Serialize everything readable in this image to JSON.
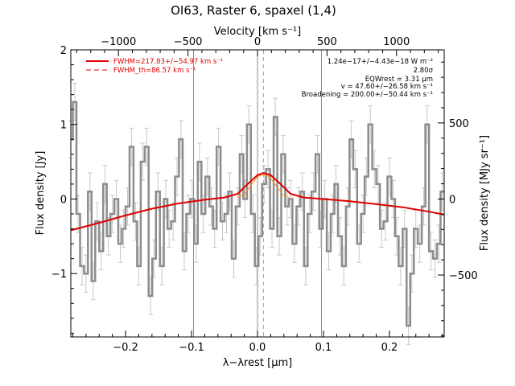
{
  "chart_data": {
    "type": "line",
    "title": "OI63, Raster 6, spaxel (1,4)",
    "xlabel": "λ−λrest [μm]",
    "ylabel_left": "Flux density [Jy]",
    "ylabel_right": "Flux density [MJy sr⁻¹]",
    "xlabel_top": "Velocity [km s⁻¹]",
    "xlim": [
      -0.283,
      0.283
    ],
    "ylim": [
      -1.85,
      2.0
    ],
    "x_ticks": [
      -0.2,
      -0.1,
      0.0,
      0.1,
      0.2
    ],
    "x_tick_labels": [
      "−0.2",
      "−0.1",
      "0.0",
      "0.1",
      "0.2"
    ],
    "y_ticks": [
      -1,
      0,
      1,
      2
    ],
    "y_tick_labels": [
      "−1",
      "0",
      "1",
      "2"
    ],
    "top_ticks": [
      -1000,
      -500,
      0,
      500,
      1000
    ],
    "top_tick_labels": [
      "−1000",
      "−500",
      "0",
      "500",
      "1000"
    ],
    "right_ticks": [
      -500,
      0,
      500
    ],
    "right_tick_labels": [
      "−500",
      "0",
      "500"
    ],
    "vertical_lines": [
      -0.097,
      0.0,
      0.097
    ],
    "dashed_line": 0.009,
    "legend": [
      {
        "label": "FWHM=217.83+/−54.97 km s⁻¹",
        "style": "solid",
        "color": "#e00000"
      },
      {
        "label": "FWHM_th=86.57 km s⁻¹",
        "style": "dashed",
        "color": "#e00000"
      }
    ],
    "annotations": [
      "1.24e−17+/−4.43e−18 W m⁻²",
      "2.80σ",
      "EQWrest = 3.31 μm",
      "v = 47.60+/−26.58 km s⁻¹",
      "Broadening = 200.00+/−50.44 km s⁻¹"
    ],
    "series": [
      {
        "name": "spectrum",
        "color": "#8c8c8c",
        "x": [
          -0.283,
          -0.277,
          -0.272,
          -0.266,
          -0.26,
          -0.254,
          -0.249,
          -0.243,
          -0.237,
          -0.231,
          -0.226,
          -0.22,
          -0.214,
          -0.208,
          -0.203,
          -0.197,
          -0.191,
          -0.185,
          -0.18,
          -0.174,
          -0.168,
          -0.162,
          -0.157,
          -0.151,
          -0.145,
          -0.139,
          -0.134,
          -0.128,
          -0.122,
          -0.116,
          -0.111,
          -0.105,
          -0.099,
          -0.093,
          -0.088,
          -0.082,
          -0.076,
          -0.07,
          -0.065,
          -0.059,
          -0.053,
          -0.047,
          -0.042,
          -0.036,
          -0.03,
          -0.024,
          -0.019,
          -0.013,
          -0.007,
          -0.001,
          0.004,
          0.01,
          0.016,
          0.022,
          0.027,
          0.033,
          0.039,
          0.045,
          0.05,
          0.056,
          0.062,
          0.068,
          0.073,
          0.079,
          0.085,
          0.091,
          0.096,
          0.102,
          0.108,
          0.114,
          0.119,
          0.125,
          0.131,
          0.137,
          0.142,
          0.148,
          0.154,
          0.16,
          0.165,
          0.171,
          0.177,
          0.183,
          0.188,
          0.194,
          0.2,
          0.206,
          0.211,
          0.217,
          0.223,
          0.229,
          0.234,
          0.24,
          0.246,
          0.252,
          0.257,
          0.263,
          0.269,
          0.275,
          0.28
        ],
        "values": [
          0.8,
          1.3,
          -0.2,
          -0.9,
          -1.0,
          0.1,
          -1.1,
          -0.3,
          -0.7,
          0.2,
          -0.5,
          -0.2,
          0.0,
          -0.6,
          -0.4,
          -0.1,
          0.7,
          -0.3,
          -0.9,
          0.5,
          0.7,
          -1.3,
          -0.8,
          0.1,
          -0.9,
          0.0,
          -0.4,
          -0.3,
          0.3,
          0.8,
          -0.7,
          -0.2,
          0.0,
          -0.6,
          0.5,
          -0.2,
          0.3,
          -0.1,
          -0.4,
          0.7,
          -0.3,
          -0.2,
          0.1,
          -0.8,
          -0.1,
          0.6,
          0.0,
          1.0,
          -0.2,
          -0.9,
          -0.5,
          0.2,
          0.4,
          -0.4,
          1.1,
          -0.5,
          0.6,
          -0.1,
          0.0,
          -0.6,
          -0.1,
          0.1,
          -0.9,
          -0.2,
          0.1,
          0.6,
          -0.4,
          0.0,
          -0.7,
          -0.2,
          0.2,
          -0.5,
          -0.9,
          -0.1,
          0.8,
          0.4,
          -0.6,
          -0.2,
          0.3,
          1.0,
          0.4,
          0.2,
          -0.4,
          -0.3,
          0.3,
          0.0,
          -0.5,
          -0.9,
          -0.4,
          -1.7,
          -1.0,
          -0.4,
          -0.6,
          -0.1,
          1.0,
          -0.7,
          -0.8,
          -0.6,
          0.1
        ],
        "errors": [
          0.25,
          0.25,
          0.25,
          0.25,
          0.25,
          0.25,
          0.25,
          0.25,
          0.25,
          0.25,
          0.25,
          0.25,
          0.25,
          0.25,
          0.25,
          0.25,
          0.25,
          0.25,
          0.25,
          0.25,
          0.25,
          0.25,
          0.25,
          0.25,
          0.25,
          0.25,
          0.25,
          0.25,
          0.25,
          0.25,
          0.25,
          0.25,
          0.25,
          0.25,
          0.25,
          0.25,
          0.25,
          0.25,
          0.25,
          0.25,
          0.25,
          0.25,
          0.25,
          0.25,
          0.25,
          0.25,
          0.25,
          0.25,
          0.25,
          0.25,
          0.25,
          0.25,
          0.25,
          0.25,
          0.25,
          0.25,
          0.25,
          0.25,
          0.25,
          0.25,
          0.25,
          0.25,
          0.25,
          0.25,
          0.25,
          0.25,
          0.25,
          0.25,
          0.25,
          0.25,
          0.25,
          0.25,
          0.25,
          0.25,
          0.25,
          0.25,
          0.25,
          0.25,
          0.25,
          0.25,
          0.25,
          0.25,
          0.25,
          0.25,
          0.25,
          0.25,
          0.25,
          0.25,
          0.25,
          0.25,
          0.25,
          0.25,
          0.25,
          0.25,
          0.25,
          0.25,
          0.25,
          0.25,
          0.25
        ]
      },
      {
        "name": "fit (solid)",
        "color": "#e00000",
        "x": [
          -0.283,
          -0.24,
          -0.2,
          -0.16,
          -0.12,
          -0.08,
          -0.05,
          -0.03,
          -0.015,
          0.0,
          0.009,
          0.02,
          0.035,
          0.05,
          0.07,
          0.1,
          0.14,
          0.18,
          0.22,
          0.26,
          0.283
        ],
        "values": [
          -0.42,
          -0.32,
          -0.22,
          -0.13,
          -0.06,
          -0.01,
          0.02,
          0.07,
          0.2,
          0.32,
          0.35,
          0.32,
          0.2,
          0.07,
          0.02,
          0.0,
          -0.03,
          -0.07,
          -0.11,
          -0.17,
          -0.21
        ]
      },
      {
        "name": "gaussian component",
        "color": "#ff8c1a",
        "x": [
          -0.03,
          -0.02,
          -0.01,
          0.0,
          0.009,
          0.018,
          0.028,
          0.038,
          0.048
        ],
        "values": [
          0.02,
          0.06,
          0.18,
          0.3,
          0.33,
          0.3,
          0.18,
          0.06,
          0.02
        ]
      }
    ]
  }
}
